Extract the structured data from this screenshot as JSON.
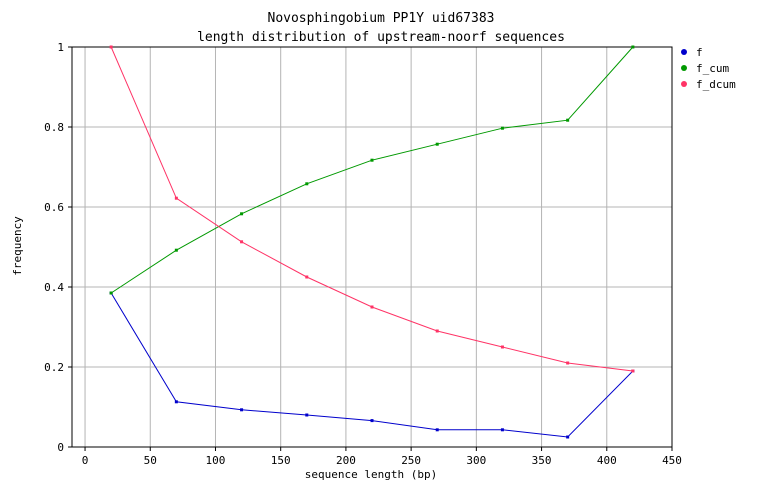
{
  "chart_data": {
    "type": "line",
    "title": "Novosphingobium PP1Y uid67383",
    "subtitle": "length distribution of upstream-noorf sequences",
    "xlabel": "sequence length (bp)",
    "ylabel": "frequency",
    "xlim": [
      -10,
      450
    ],
    "ylim": [
      0,
      1
    ],
    "xticks": [
      0,
      50,
      100,
      150,
      200,
      250,
      300,
      350,
      400,
      450
    ],
    "yticks": [
      0,
      0.2,
      0.4,
      0.6,
      0.8,
      1
    ],
    "grid": true,
    "legend_position": "top-right",
    "x": [
      20,
      70,
      120,
      170,
      220,
      270,
      320,
      370,
      420
    ],
    "series": [
      {
        "name": "f",
        "color": "#0000cc",
        "values": [
          0.385,
          0.113,
          0.093,
          0.08,
          0.066,
          0.043,
          0.043,
          0.025,
          0.19
        ]
      },
      {
        "name": "f_cum",
        "color": "#009900",
        "values": [
          0.385,
          0.492,
          0.583,
          0.658,
          0.717,
          0.757,
          0.797,
          0.817,
          1.0
        ]
      },
      {
        "name": "f_dcum",
        "color": "#ff3366",
        "values": [
          1.0,
          0.622,
          0.513,
          0.425,
          0.35,
          0.29,
          0.25,
          0.21,
          0.19
        ]
      }
    ]
  }
}
